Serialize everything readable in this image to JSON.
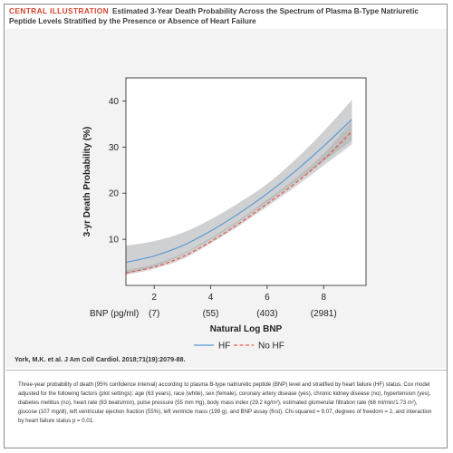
{
  "header": {
    "label": "CENTRAL ILLUSTRATION",
    "title": "Estimated 3-Year Death Probability Across the Spectrum of Plasma B-Type Natriuretic Peptide Levels Stratified by the Presence or Absence of Heart Failure"
  },
  "citation": "York, M.K. et al. J Am Coll Cardiol. 2018;71(19):2079-88.",
  "caption": "Three-year probability of death (95% confidence interval) according to plasma B-type natriuretic peptide (BNP) level and stratified by heart failure (HF) status. Cox model adjusted for the following factors (plot settings): age (63 years), race (white), sex (female), coronary artery disease (yes), chronic kidney disease (no), hypertension (yes), diabetes mellitus (no), heart rate (83 beats/min), pulse pressure (55 mm Hg), body mass index (29.2 kg/m²), estimated glomerular filtration rate (68 ml/min/1.73 m²), glucose (107 mg/dl), left ventricular ejection fraction (55%), left ventricle mass (199 g), and BNP assay (first). Chi-squared = 9.07, degrees of freedom = 2, and interaction by heart failure status p = 0.01.",
  "colors": {
    "hf_line": "#5b9bd5",
    "no_hf_line": "#e15a4b",
    "ci_band": "#a7a9ac",
    "plot_bg": "#ffffff",
    "panel_bg": "#f3f3f3",
    "header_label": "#d6412b"
  },
  "chart_data": {
    "type": "line",
    "title": "",
    "xlabel": "Natural Log BNP",
    "x_secondary_label": "BNP (pg/ml)",
    "ylabel": "3-yr Death Probability (%)",
    "xlim": [
      1,
      9.5
    ],
    "ylim": [
      0,
      45
    ],
    "x_ticks": [
      2,
      4,
      6,
      8
    ],
    "x_secondary_ticks": [
      "(7)",
      "(55)",
      "(403)",
      "(2981)"
    ],
    "y_ticks": [
      10,
      20,
      30,
      40
    ],
    "grid": false,
    "legend_position": "bottom-center",
    "series": [
      {
        "name": "HF",
        "style": "solid",
        "x": [
          1,
          2,
          3,
          4,
          5,
          6,
          7,
          8,
          9
        ],
        "values": [
          5,
          6.4,
          8.6,
          11.8,
          15.6,
          19.9,
          24.8,
          30.2,
          36
        ],
        "ci_lower": [
          2.5,
          4.1,
          6.6,
          9.9,
          13.8,
          18,
          22.5,
          26.9,
          31.4
        ],
        "ci_upper": [
          8.6,
          9.6,
          11.4,
          14.3,
          17.9,
          22,
          27.3,
          33.4,
          40.2
        ]
      },
      {
        "name": "No HF",
        "style": "dashed",
        "x": [
          1,
          2,
          3,
          4,
          5,
          6,
          7,
          8,
          9
        ],
        "values": [
          2.7,
          4,
          6.2,
          9.5,
          13.4,
          17.7,
          22.2,
          27.3,
          33.4
        ],
        "ci_lower": [
          2.3,
          3.6,
          5.7,
          9.1,
          12.9,
          17.1,
          21.4,
          26,
          30.6
        ],
        "ci_upper": [
          3.3,
          4.6,
          6.9,
          10.3,
          14.2,
          18.6,
          23.2,
          28.6,
          35.7
        ]
      }
    ]
  }
}
